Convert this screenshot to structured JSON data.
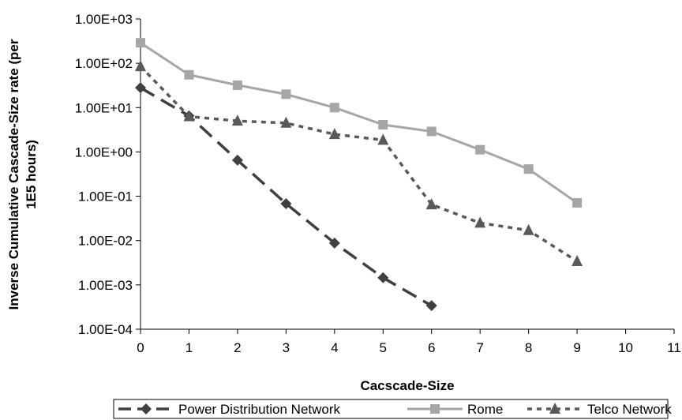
{
  "chart_data": {
    "type": "line",
    "xlabel": "Cacscade-Size",
    "ylabel_line1": "Inverse Cumulative Cascade-Size rate (per",
    "ylabel_line2": "1E5 hours)",
    "x_scale": "linear",
    "y_scale": "log",
    "xlim": [
      0,
      11
    ],
    "ylim": [
      0.0001,
      1000
    ],
    "x_ticks": [
      0,
      1,
      2,
      3,
      4,
      5,
      6,
      7,
      8,
      9,
      10,
      11
    ],
    "x_tick_labels": [
      "0",
      "1",
      "2",
      "3",
      "4",
      "5",
      "6",
      "7",
      "8",
      "9",
      "10",
      "11"
    ],
    "y_ticks": [
      0.0001,
      0.001,
      0.01,
      0.1,
      1,
      10,
      100,
      1000
    ],
    "y_tick_labels": [
      "1.00E-04",
      "1.00E-03",
      "1.00E-02",
      "1.00E-01",
      "1.00E+00",
      "1.00E+01",
      "1.00E+02",
      "1.00E+03"
    ],
    "grid": false,
    "legend_position": "bottom",
    "series": [
      {
        "name": "Power Distribution Network",
        "color": "#404040",
        "marker": "diamond",
        "line_style": "long-dash",
        "x": [
          0,
          1,
          2,
          3,
          4,
          5,
          6
        ],
        "y": [
          28,
          6.5,
          0.65,
          0.068,
          0.0088,
          0.00145,
          0.00034
        ]
      },
      {
        "name": "Rome",
        "color": "#a6a6a6",
        "marker": "square",
        "line_style": "solid",
        "x": [
          0,
          1,
          2,
          3,
          4,
          5,
          6,
          7,
          8,
          9
        ],
        "y": [
          290,
          55,
          32,
          20,
          10,
          4.1,
          2.9,
          1.12,
          0.41,
          0.071
        ]
      },
      {
        "name": "Telco Network",
        "color": "#595959",
        "marker": "triangle",
        "line_style": "short-dash",
        "x": [
          0,
          1,
          2,
          3,
          4,
          5,
          6,
          7,
          8,
          9
        ],
        "y": [
          85,
          6.3,
          5.0,
          4.5,
          2.5,
          1.85,
          0.065,
          0.025,
          0.017,
          0.0034
        ]
      }
    ]
  }
}
